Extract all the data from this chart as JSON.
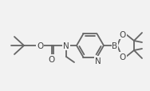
{
  "bg_color": "#f2f2f2",
  "line_color": "#666666",
  "line_width": 1.3,
  "figsize": [
    1.88,
    1.15
  ],
  "dpi": 100,
  "xlim": [
    0,
    188
  ],
  "ylim": [
    0,
    115
  ]
}
